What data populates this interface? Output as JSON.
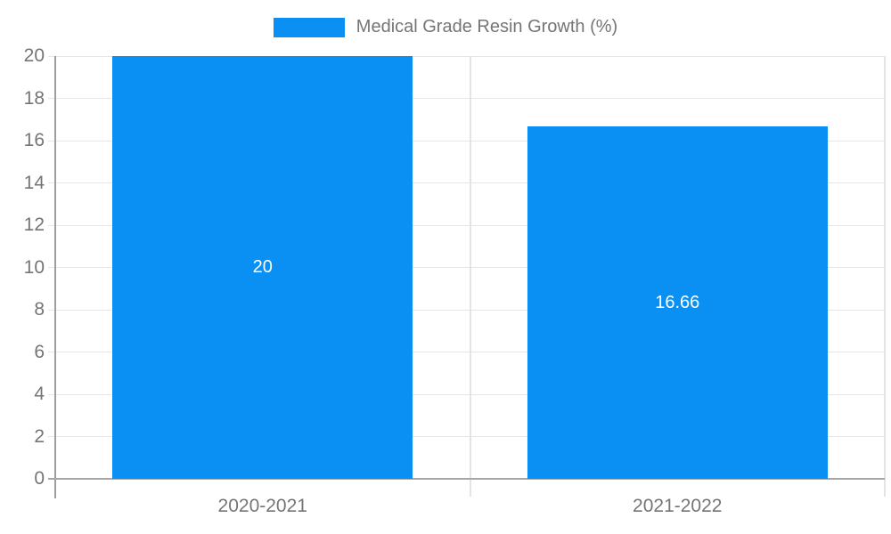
{
  "chart_data": {
    "type": "bar",
    "title": "",
    "legend": {
      "label": "Medical Grade Resin Growth (%)",
      "position": "top"
    },
    "categories": [
      "2020-2021",
      "2021-2022"
    ],
    "series": [
      {
        "name": "Medical Grade Resin Growth (%)",
        "values": [
          20,
          16.66
        ],
        "value_labels": [
          "20",
          "16.66"
        ]
      }
    ],
    "xlabel": "",
    "ylabel": "",
    "ylim": [
      0,
      20
    ],
    "yticks": [
      0,
      2,
      4,
      6,
      8,
      10,
      12,
      14,
      16,
      18,
      20
    ],
    "grid": true,
    "colors": {
      "bar": "#0a8ff2",
      "grid": "#e6e6e6",
      "axis": "#9e9e9e",
      "text": "#757575",
      "value_label": "#ffffff",
      "background": "#ffffff"
    }
  }
}
